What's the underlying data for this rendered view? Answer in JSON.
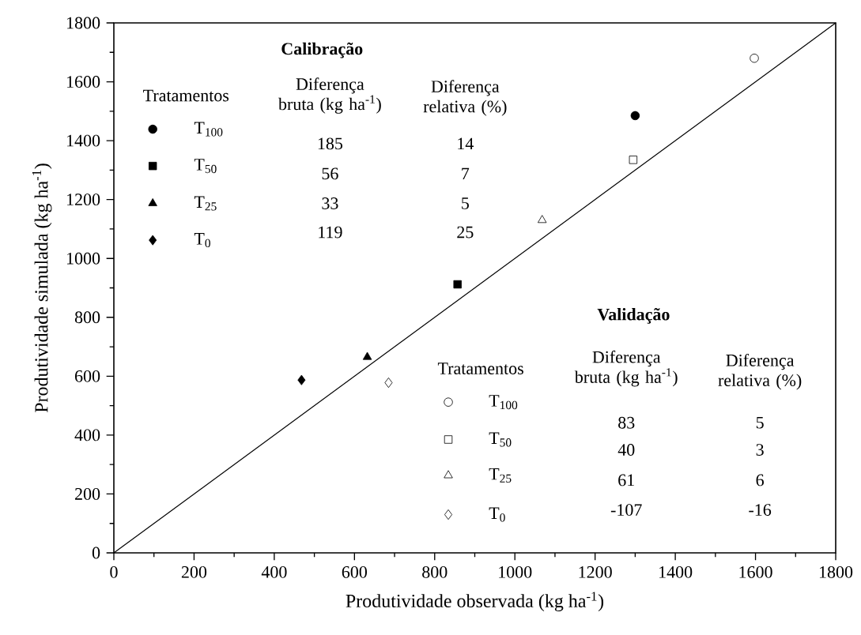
{
  "chart_data": {
    "type": "scatter",
    "xlabel": "Produtividade observada (kg ha$^{-1}$)",
    "ylabel": "Produtividade simulada (kg ha$^{-1}$)",
    "xlim": [
      0,
      1800
    ],
    "ylim": [
      0,
      1800
    ],
    "xticks": [
      0,
      200,
      400,
      600,
      800,
      1000,
      1200,
      1400,
      1600,
      1800
    ],
    "yticks": [
      0,
      200,
      400,
      600,
      800,
      1000,
      1200,
      1400,
      1600,
      1800
    ],
    "legend": "left",
    "series": [
      {
        "type": "line",
        "color": "#000000",
        "marker": "none",
        "x": [
          0,
          1800
        ],
        "values": [
          0,
          1800
        ]
      },
      {
        "name": "T$_{100}$",
        "color": "#000000",
        "marker": "circle",
        "x": [
          1300
        ],
        "values": [
          1485
        ]
      },
      {
        "name": "T$_{50}$",
        "color": "#000000",
        "marker": "square",
        "x": [
          857
        ],
        "values": [
          912
        ]
      },
      {
        "name": "T$_{25}$",
        "color": "#000000",
        "marker": "triangle",
        "x": [
          632
        ],
        "values": [
          665
        ]
      },
      {
        "name": "T$_{0}$",
        "color": "#000000",
        "marker": "diamond",
        "x": [
          468
        ],
        "values": [
          587
        ]
      },
      {
        "name": "T$_{100}$",
        "color": "#000000",
        "marker": "circle",
        "x": [
          1597
        ],
        "values": [
          1680
        ]
      },
      {
        "name": "T$_{50}$",
        "color": "#000000",
        "marker": "square",
        "x": [
          1295
        ],
        "values": [
          1335
        ]
      },
      {
        "name": "T$_{25}$",
        "color": "#000000",
        "marker": "triangle",
        "x": [
          1068
        ],
        "values": [
          1130
        ]
      },
      {
        "name": "T$_{0}$",
        "color": "#000000",
        "marker": "diamond",
        "x": [
          685
        ],
        "values": [
          578
        ]
      }
    ],
    "annotations": [
      "Calibração",
      "Tratamentos",
      "Diferença bruta (kg ha$^{-1}$)",
      "Diferença relativa (%)",
      "185",
      "56",
      "33",
      "119",
      "14",
      "7",
      "5",
      "25",
      "Validação",
      "Tratamentos",
      "Diferença bruta (kg ha$^{-1}$)",
      "Diferença relativa (%)",
      "83",
      "40",
      "61",
      "-107",
      "5",
      "3",
      "6",
      "-16"
    ]
  }
}
